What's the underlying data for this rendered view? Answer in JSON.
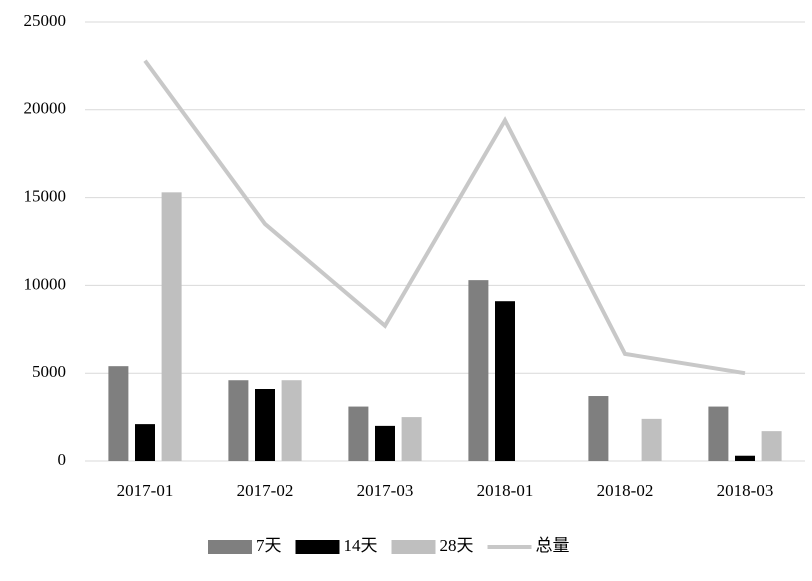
{
  "chart_data": {
    "type": "bar",
    "categories": [
      "2017-01",
      "2017-02",
      "2017-03",
      "2018-01",
      "2018-02",
      "2018-03"
    ],
    "series": [
      {
        "name": "7天",
        "color": "#7f7f7f",
        "values": [
          5400,
          4600,
          3100,
          10300,
          3700,
          3100
        ]
      },
      {
        "name": "14天",
        "color": "#000000",
        "values": [
          2100,
          4100,
          2000,
          9100,
          0,
          300
        ]
      },
      {
        "name": "28天",
        "color": "#bfbfbf",
        "values": [
          15300,
          4600,
          2500,
          0,
          2400,
          1700
        ]
      },
      {
        "name": "总量",
        "color": "#c8c8c8",
        "type": "line",
        "values": [
          22800,
          13500,
          7700,
          19400,
          6100,
          5000
        ]
      }
    ],
    "ylim": [
      0,
      25000
    ],
    "yticks": [
      0,
      5000,
      10000,
      15000,
      20000,
      25000
    ],
    "grid": true,
    "legend": "bottom"
  }
}
